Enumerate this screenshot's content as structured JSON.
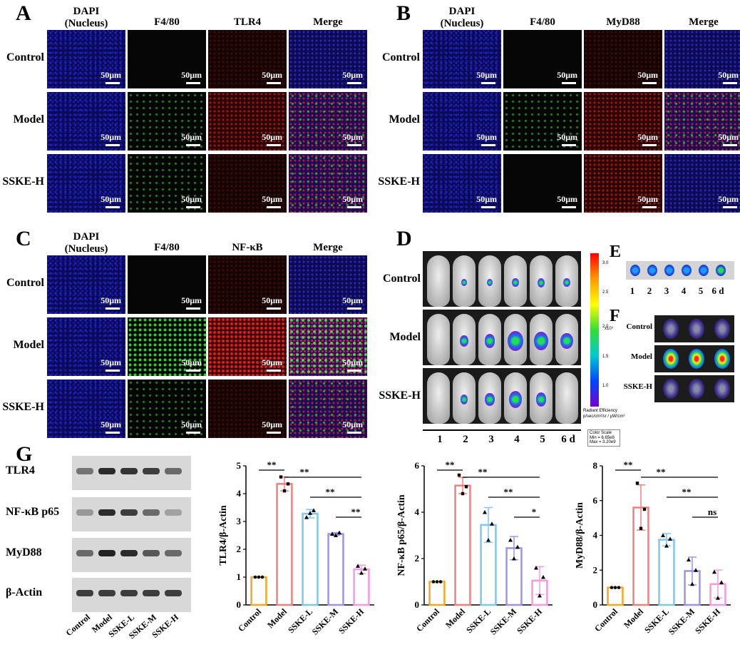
{
  "panels": [
    "A",
    "B",
    "C",
    "D",
    "E",
    "F",
    "G"
  ],
  "if_panels": [
    {
      "letter": "A",
      "cols": [
        "DAPI\n(Nucleus)",
        "F4/80",
        "TLR4",
        "Merge"
      ]
    },
    {
      "letter": "B",
      "cols": [
        "DAPI\n(Nucleus)",
        "F4/80",
        "MyD88",
        "Merge"
      ]
    },
    {
      "letter": "C",
      "cols": [
        "DAPI\n(Nucleus)",
        "F4/80",
        "NF-κB",
        "Merge"
      ]
    }
  ],
  "row_labels": [
    "Control",
    "Model",
    "SSKE-H"
  ],
  "scale_bar": "50μm",
  "ivis": {
    "rows": [
      "Control",
      "Model",
      "SSKE-H"
    ],
    "days": [
      "1",
      "2",
      "3",
      "4",
      "5",
      "6 d"
    ],
    "colorbar_title": "Radiant Efficiency",
    "colorbar_units": "p/sec/cm²/sr / μW/cm²",
    "colorbar_exp": "x10⁹",
    "colorbar_ticks": [
      "3.0",
      "2.5",
      "2.0",
      "1.5",
      "1.0"
    ],
    "color_scale": [
      "Color Scale",
      "Min = 6.65e8",
      "Max = 3.20e9"
    ]
  },
  "organs_E": {
    "days": [
      "1",
      "2",
      "3",
      "4",
      "5",
      "6 d"
    ]
  },
  "organs_F": {
    "rows": [
      "Control",
      "Model",
      "SSKE-H"
    ]
  },
  "western": {
    "proteins": [
      "TLR4",
      "NF-κB p65",
      "MyD88",
      "β-Actin"
    ],
    "lanes": [
      "Control",
      "Model",
      "SSKE-L",
      "SSKE-M",
      "SSKE-H"
    ]
  },
  "chart_data": [
    {
      "type": "bar",
      "ylabel": "TLR4/β-Actin",
      "categories": [
        "Control",
        "Model",
        "SSKE-L",
        "SSKE-M",
        "SSKE-H"
      ],
      "values": [
        1.0,
        4.35,
        3.28,
        2.55,
        1.28
      ],
      "errors": [
        0.0,
        0.25,
        0.15,
        0.05,
        0.15
      ],
      "points": [
        [
          1,
          1,
          1
        ],
        [
          4.6,
          4.1,
          4.35
        ],
        [
          3.15,
          3.3,
          3.4
        ],
        [
          2.55,
          2.5,
          2.6
        ],
        [
          1.4,
          1.15,
          1.3
        ]
      ],
      "ylim": [
        0,
        5
      ],
      "yticks": [
        "0",
        "1",
        "2",
        "3",
        "4",
        "5"
      ],
      "significance": [
        {
          "from": "Control",
          "to": "Model",
          "label": "**"
        },
        {
          "from": "Model",
          "to": "SSKE-H",
          "label": "**"
        },
        {
          "from": "SSKE-L",
          "to": "SSKE-H",
          "label": "**"
        },
        {
          "from": "SSKE-M",
          "to": "SSKE-H",
          "label": "**"
        }
      ],
      "colors": [
        "#f5a623",
        "#f08080",
        "#7fc7f0",
        "#9b93e8",
        "#f39ae0"
      ]
    },
    {
      "type": "bar",
      "ylabel": "NF-κB p65/β-Actin",
      "categories": [
        "Control",
        "Model",
        "SSKE-L",
        "SSKE-M",
        "SSKE-H"
      ],
      "values": [
        1.0,
        5.15,
        3.45,
        2.45,
        1.05
      ],
      "errors": [
        0.0,
        0.35,
        0.75,
        0.5,
        0.6
      ],
      "points": [
        [
          1,
          1,
          1
        ],
        [
          5.6,
          4.8,
          5.1
        ],
        [
          4.0,
          2.8,
          3.5
        ],
        [
          2.8,
          2.0,
          2.5
        ],
        [
          1.6,
          0.4,
          1.2
        ]
      ],
      "ylim": [
        0,
        6
      ],
      "yticks": [
        "0",
        "2",
        "4",
        "6"
      ],
      "significance": [
        {
          "from": "Control",
          "to": "Model",
          "label": "**"
        },
        {
          "from": "Model",
          "to": "SSKE-H",
          "label": "**"
        },
        {
          "from": "SSKE-L",
          "to": "SSKE-H",
          "label": "**"
        },
        {
          "from": "SSKE-M",
          "to": "SSKE-H",
          "label": "*"
        }
      ],
      "colors": [
        "#f5a623",
        "#f08080",
        "#7fc7f0",
        "#9b93e8",
        "#f39ae0"
      ]
    },
    {
      "type": "bar",
      "ylabel": "MyD88/β-Actin",
      "categories": [
        "Control",
        "Model",
        "SSKE-L",
        "SSKE-M",
        "SSKE-H"
      ],
      "values": [
        1.0,
        5.6,
        3.75,
        1.95,
        1.2
      ],
      "errors": [
        0.0,
        1.3,
        0.35,
        0.8,
        0.8
      ],
      "points": [
        [
          1,
          1,
          1
        ],
        [
          7.0,
          4.4,
          5.5
        ],
        [
          4.0,
          3.4,
          3.8
        ],
        [
          2.6,
          1.2,
          2.0
        ],
        [
          1.9,
          0.4,
          1.3
        ]
      ],
      "ylim": [
        0,
        8
      ],
      "yticks": [
        "0",
        "2",
        "4",
        "6",
        "8"
      ],
      "significance": [
        {
          "from": "Control",
          "to": "Model",
          "label": "**"
        },
        {
          "from": "Model",
          "to": "SSKE-H",
          "label": "**"
        },
        {
          "from": "SSKE-L",
          "to": "SSKE-H",
          "label": "**"
        },
        {
          "from": "SSKE-M",
          "to": "SSKE-H",
          "label": "ns"
        }
      ],
      "colors": [
        "#f5a623",
        "#f08080",
        "#7fc7f0",
        "#9b93e8",
        "#f39ae0"
      ]
    }
  ]
}
